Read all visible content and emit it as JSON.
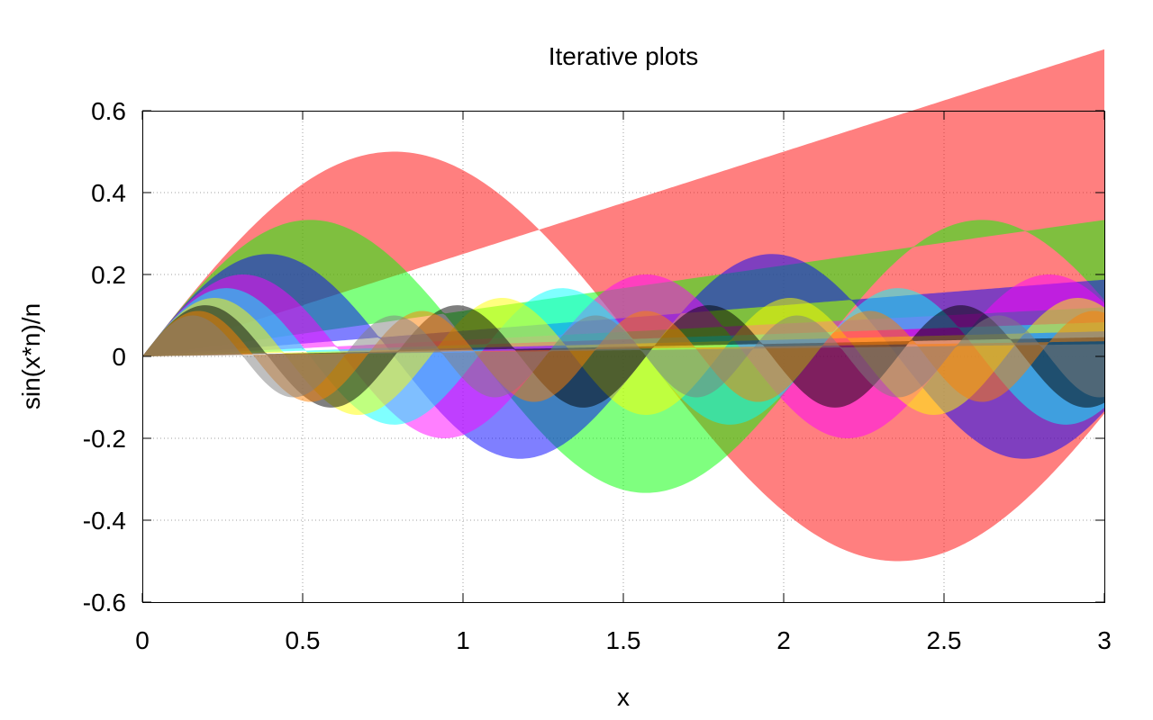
{
  "chart_data": {
    "type": "area",
    "title": "Iterative plots",
    "xlabel": "x",
    "ylabel": "sin(x*n)/n",
    "xlim": [
      0,
      3
    ],
    "ylim": [
      -0.6,
      0.6
    ],
    "grid": true,
    "x_ticks": [
      "0",
      "0.5",
      "1",
      "1.5",
      "2",
      "2.5",
      "3"
    ],
    "y_ticks": [
      "0.6",
      "0.4",
      "0.2",
      "0",
      "-0.2",
      "-0.4",
      "-0.6"
    ],
    "x_tick_values": [
      0,
      0.5,
      1,
      1.5,
      2,
      2.5,
      3
    ],
    "y_tick_values": [
      0.6,
      0.4,
      0.2,
      0,
      -0.2,
      -0.4,
      -0.6
    ],
    "series": [
      {
        "n": 2,
        "color": "#ff0000"
      },
      {
        "n": 3,
        "color": "#00ff00"
      },
      {
        "n": 4,
        "color": "#0000ff"
      },
      {
        "n": 5,
        "color": "#ff00ff"
      },
      {
        "n": 6,
        "color": "#00ffff"
      },
      {
        "n": 7,
        "color": "#ffff00"
      },
      {
        "n": 8,
        "color": "#000000"
      },
      {
        "n": 9,
        "color": "#ff8000"
      },
      {
        "n": 10,
        "color": "#808080"
      }
    ]
  }
}
